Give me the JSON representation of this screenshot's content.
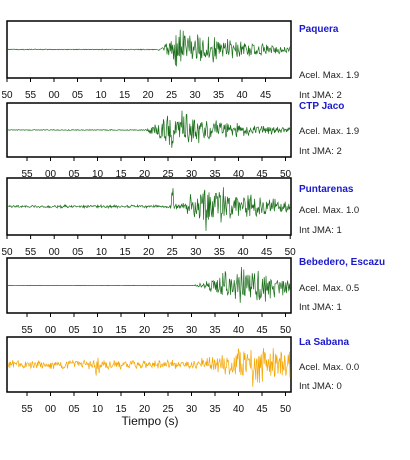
{
  "chart_data": {
    "type": "line",
    "xlabel": "Tiempo (s)",
    "panels": [
      {
        "station": "Paquera",
        "acel_label": "Acel. Max. 1.9",
        "jma_label": "Int JMA: 2",
        "color": "#1a6e1a",
        "ticks": [
          "50",
          "55",
          "00",
          "05",
          "10",
          "15",
          "20",
          "25",
          "30",
          "35",
          "40",
          "45"
        ],
        "tick_start": 50,
        "tick_pos_start": 50,
        "tick_range": [
          50,
          48
        ],
        "onset": 22,
        "peak": 27,
        "amplitude": 1.0,
        "noise": 0.02
      },
      {
        "station": "CTP Jaco",
        "acel_label": "Acel. Max. 1.9",
        "jma_label": "Int JMA: 2",
        "color": "#1a6e1a",
        "ticks": [
          "55",
          "00",
          "05",
          "10",
          "15",
          "20",
          "25",
          "30",
          "35",
          "40",
          "45",
          "50"
        ],
        "onset": 20,
        "peak": 26,
        "amplitude": 1.0,
        "noise": 0.02
      },
      {
        "station": "Puntarenas",
        "acel_label": "Acel. Max. 1.0",
        "jma_label": "Int JMA: 1",
        "color": "#1a6e1a",
        "ticks": [
          "50",
          "55",
          "00",
          "05",
          "10",
          "15",
          "20",
          "25",
          "30",
          "35",
          "40",
          "45",
          "50"
        ],
        "onset": 24,
        "peak": 32,
        "amplitude": 1.0,
        "noise": 0.06
      },
      {
        "station": "Bebedero, Escazu",
        "acel_label": "Acel. Max. 0.5",
        "jma_label": "Int JMA: 1",
        "color": "#1a6e1a",
        "ticks": [
          "55",
          "00",
          "05",
          "10",
          "15",
          "20",
          "25",
          "30",
          "35",
          "40",
          "45",
          "50"
        ],
        "onset": 30,
        "peak": 41,
        "amplitude": 1.0,
        "noise": 0.01
      },
      {
        "station": "La Sabana",
        "acel_label": "Acel. Max. 0.0",
        "jma_label": "Int JMA: 0",
        "color": "#f5a500",
        "ticks": [
          "55",
          "00",
          "05",
          "10",
          "15",
          "20",
          "25",
          "30",
          "35",
          "40",
          "45",
          "50"
        ],
        "onset": 30,
        "peak": 43,
        "amplitude": 1.0,
        "noise": 0.2
      }
    ]
  }
}
